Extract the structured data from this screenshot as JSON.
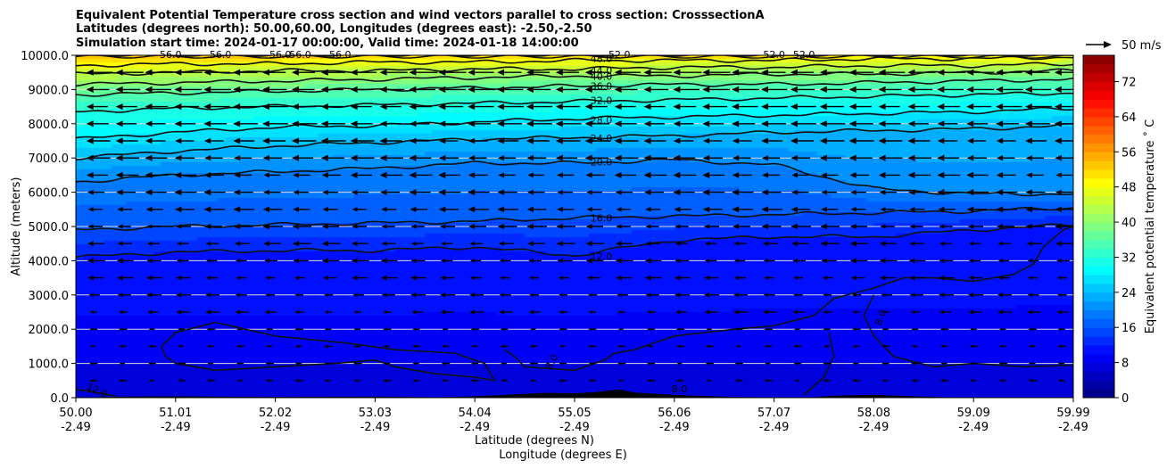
{
  "chart_data": {
    "type": "contour",
    "title_lines": [
      "Equivalent Potential Temperature cross section and wind vectors parallel to cross section: CrosssectionA",
      "Latitudes (degrees north): 50.00,60.00, Longitudes (degrees east): -2.50,-2.50",
      "Simulation start time: 2024-01-17 00:00:00, Valid time: 2024-01-18 14:00:00"
    ],
    "xlabel_lines": [
      "Latitude (degrees N)",
      "Longitude (degrees E)"
    ],
    "ylabel": "Altitude (meters)",
    "colorbar_label": "Equivalent potential temperature ˚ C",
    "quiver_key_label": "50 m/s",
    "x_ticks": [
      {
        "lat": "50.00",
        "lon": "-2.49"
      },
      {
        "lat": "51.01",
        "lon": "-2.49"
      },
      {
        "lat": "52.02",
        "lon": "-2.49"
      },
      {
        "lat": "53.03",
        "lon": "-2.49"
      },
      {
        "lat": "54.04",
        "lon": "-2.49"
      },
      {
        "lat": "55.05",
        "lon": "-2.49"
      },
      {
        "lat": "56.06",
        "lon": "-2.49"
      },
      {
        "lat": "57.07",
        "lon": "-2.49"
      },
      {
        "lat": "58.08",
        "lon": "-2.49"
      },
      {
        "lat": "59.09",
        "lon": "-2.49"
      },
      {
        "lat": "59.99",
        "lon": "-2.49"
      }
    ],
    "y_ticks": [
      "0.0",
      "1000.0",
      "2000.0",
      "3000.0",
      "4000.0",
      "5000.0",
      "6000.0",
      "7000.0",
      "8000.0",
      "9000.0",
      "10000.0"
    ],
    "ylim": [
      0,
      10000
    ],
    "xlim": [
      50.0,
      59.99
    ],
    "colorbar_ticks": [
      "0",
      "8",
      "16",
      "24",
      "32",
      "40",
      "48",
      "56",
      "64",
      "72"
    ],
    "colorbar_range": [
      0,
      78
    ],
    "grid": "horizontal",
    "contour_levels": [
      {
        "value": 12,
        "label": "12.0",
        "heights": [
          4100,
          4250,
          4300,
          4300,
          4400,
          4150,
          4600,
          4700,
          4700,
          4900,
          5050
        ]
      },
      {
        "value": 16,
        "label": "16.0",
        "heights": [
          4900,
          5000,
          5050,
          5100,
          5150,
          5250,
          5300,
          5350,
          5400,
          5450,
          5550
        ]
      },
      {
        "value": 20,
        "label": "20.0",
        "heights": [
          6300,
          6500,
          6600,
          6700,
          6850,
          6850,
          6950,
          6800,
          6100,
          5950,
          5950
        ]
      },
      {
        "value": 24,
        "label": "24.0",
        "heights": [
          7000,
          7200,
          7350,
          7450,
          7550,
          7600,
          7650,
          7750,
          7800,
          7850,
          7950
        ]
      },
      {
        "value": 28,
        "label": "28.0",
        "heights": [
          7550,
          7750,
          7900,
          7950,
          8050,
          8150,
          8200,
          8250,
          8300,
          8350,
          8450
        ]
      },
      {
        "value": 32,
        "label": "32.0",
        "heights": [
          8350,
          8450,
          8500,
          8550,
          8600,
          8650,
          8700,
          8750,
          8800,
          8850,
          8900
        ]
      },
      {
        "value": 36,
        "label": "36.0",
        "heights": [
          8850,
          8900,
          8950,
          9000,
          9050,
          9100,
          9150,
          9150,
          9200,
          9250,
          9300
        ]
      },
      {
        "value": 40,
        "label": "40.0",
        "heights": [
          9150,
          9200,
          9250,
          9300,
          9350,
          9400,
          9400,
          9450,
          9450,
          9500,
          9550
        ]
      },
      {
        "value": 44,
        "label": "44.0",
        "heights": [
          9450,
          9500,
          9550,
          9550,
          9600,
          9600,
          9650,
          9650,
          9700,
          9700,
          9750
        ]
      },
      {
        "value": 48,
        "label": "48.0",
        "heights": [
          9700,
          9750,
          9750,
          9800,
          9800,
          9850,
          9850,
          9850,
          9900,
          9900,
          9950
        ]
      }
    ],
    "top_contour_labels": [
      "56.0",
      "56.0",
      "56.0",
      "56.0",
      "56.0",
      "52.0",
      "52.0",
      "52.0"
    ],
    "low_contour_labels": [
      "12.0",
      "8.0",
      "8.0",
      "8.0"
    ]
  }
}
